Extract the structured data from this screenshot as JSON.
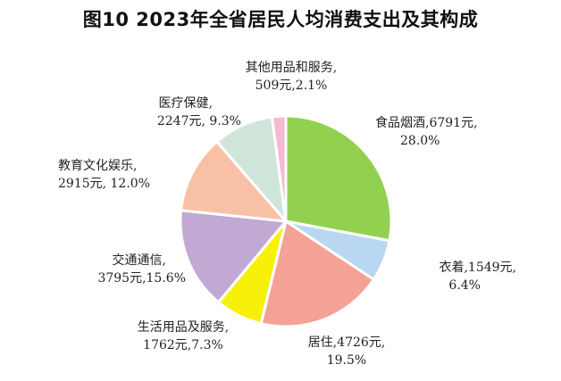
{
  "chart_data": {
    "type": "pie",
    "title": "图10 2023年全省居民人均消费支出及其构成",
    "slices": [
      {
        "name": "食品烟酒",
        "value": 6791,
        "percent": 28.0,
        "color": "#92D050",
        "label_line1": "食品烟酒,6791元,",
        "label_line2": "28.0%"
      },
      {
        "name": "衣着",
        "value": 1549,
        "percent": 6.4,
        "color": "#B9D7F1",
        "label_line1": "衣着,1549元,",
        "label_line2": "6.4%"
      },
      {
        "name": "居住",
        "value": 4726,
        "percent": 19.5,
        "color": "#F4A196",
        "label_line1": "居住,4726元,",
        "label_line2": "19.5%"
      },
      {
        "name": "生活用品及服务",
        "value": 1762,
        "percent": 7.3,
        "color": "#F7F10A",
        "label_line1": "生活用品及服务,",
        "label_line2": "1762元,7.3%"
      },
      {
        "name": "交通通信",
        "value": 3795,
        "percent": 15.6,
        "color": "#C2A9D3",
        "label_line1": "交通通信,",
        "label_line2": "3795元,15.6%"
      },
      {
        "name": "教育文化娱乐",
        "value": 2915,
        "percent": 12.0,
        "color": "#F8C1A6",
        "label_line1": "教育文化娱乐,",
        "label_line2": "2915元, 12.0%"
      },
      {
        "name": "医疗保健",
        "value": 2247,
        "percent": 9.3,
        "color": "#CFE5DA",
        "label_line1": "医疗保健,",
        "label_line2": "2247元, 9.3%"
      },
      {
        "name": "其他用品和服务",
        "value": 509,
        "percent": 2.1,
        "color": "#F5B9D3",
        "label_line1": "其他用品和服务,",
        "label_line2": "509元,2.1%"
      }
    ],
    "start_angle": "12 o'clock",
    "direction": "clockwise",
    "legend": "none"
  }
}
